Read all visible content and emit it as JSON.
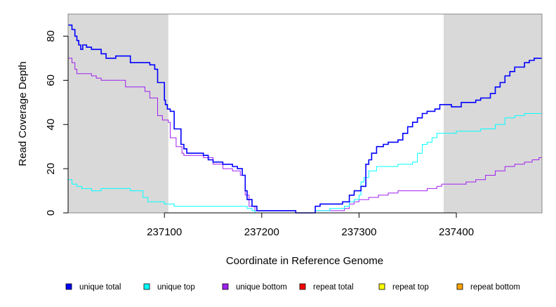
{
  "chart_data": {
    "type": "line",
    "title": "",
    "xlabel": "Coordinate in Reference Genome",
    "ylabel": "Read Coverage Depth",
    "xlim": [
      237001,
      237488
    ],
    "ylim": [
      0,
      90
    ],
    "x_ticks": [
      237100,
      237200,
      237300,
      237400
    ],
    "x_tick_labels": [
      "237100",
      "237200",
      "237300",
      "237400"
    ],
    "y_ticks": [
      0,
      20,
      40,
      60,
      80
    ],
    "y_tick_labels": [
      "0",
      "20",
      "40",
      "60",
      "80"
    ],
    "shaded_regions": [
      [
        237001,
        237104
      ],
      [
        237387,
        237488
      ]
    ],
    "shade_color": "#d9d9d9",
    "grid": false,
    "legend_position": "bottom",
    "series": [
      {
        "name": "unique total",
        "color": "#0000ff",
        "width": 1.6,
        "points": [
          [
            237001,
            85
          ],
          [
            237005,
            83
          ],
          [
            237008,
            80
          ],
          [
            237010,
            78
          ],
          [
            237012,
            76
          ],
          [
            237014,
            74
          ],
          [
            237016,
            76
          ],
          [
            237020,
            75
          ],
          [
            237025,
            74
          ],
          [
            237035,
            72
          ],
          [
            237040,
            70
          ],
          [
            237050,
            71
          ],
          [
            237065,
            68
          ],
          [
            237085,
            67
          ],
          [
            237090,
            65
          ],
          [
            237093,
            59
          ],
          [
            237100,
            51
          ],
          [
            237101,
            49
          ],
          [
            237103,
            47
          ],
          [
            237106,
            46
          ],
          [
            237110,
            38
          ],
          [
            237117,
            31
          ],
          [
            237120,
            29
          ],
          [
            237123,
            27
          ],
          [
            237140,
            26
          ],
          [
            237145,
            24
          ],
          [
            237150,
            23
          ],
          [
            237160,
            22
          ],
          [
            237170,
            21
          ],
          [
            237175,
            20
          ],
          [
            237180,
            17
          ],
          [
            237183,
            10
          ],
          [
            237185,
            6
          ],
          [
            237190,
            3
          ],
          [
            237195,
            1
          ],
          [
            237235,
            0
          ],
          [
            237255,
            3
          ],
          [
            237260,
            4
          ],
          [
            237283,
            5
          ],
          [
            237290,
            8
          ],
          [
            237295,
            10
          ],
          [
            237302,
            12
          ],
          [
            237307,
            22
          ],
          [
            237310,
            24
          ],
          [
            237313,
            27
          ],
          [
            237318,
            30
          ],
          [
            237325,
            31
          ],
          [
            237330,
            32
          ],
          [
            237340,
            33
          ],
          [
            237345,
            36
          ],
          [
            237350,
            39
          ],
          [
            237355,
            41
          ],
          [
            237360,
            43
          ],
          [
            237365,
            45
          ],
          [
            237370,
            46
          ],
          [
            237378,
            47
          ],
          [
            237383,
            49
          ],
          [
            237395,
            48
          ],
          [
            237405,
            50
          ],
          [
            237420,
            51
          ],
          [
            237425,
            52
          ],
          [
            237435,
            54
          ],
          [
            237440,
            57
          ],
          [
            237445,
            59
          ],
          [
            237450,
            62
          ],
          [
            237455,
            64
          ],
          [
            237460,
            66
          ],
          [
            237470,
            68
          ],
          [
            237475,
            69
          ],
          [
            237480,
            70
          ],
          [
            237488,
            70
          ]
        ]
      },
      {
        "name": "unique top",
        "color": "#00ffff",
        "width": 1,
        "points": [
          [
            237001,
            15
          ],
          [
            237005,
            13
          ],
          [
            237010,
            12
          ],
          [
            237015,
            11
          ],
          [
            237025,
            10
          ],
          [
            237035,
            11
          ],
          [
            237065,
            10
          ],
          [
            237078,
            7
          ],
          [
            237083,
            5
          ],
          [
            237100,
            4
          ],
          [
            237110,
            3
          ],
          [
            237185,
            2
          ],
          [
            237190,
            1
          ],
          [
            237193,
            0
          ],
          [
            237255,
            1
          ],
          [
            237270,
            2
          ],
          [
            237285,
            3
          ],
          [
            237290,
            5
          ],
          [
            237295,
            6
          ],
          [
            237300,
            8
          ],
          [
            237302,
            14
          ],
          [
            237305,
            16
          ],
          [
            237310,
            19
          ],
          [
            237318,
            21
          ],
          [
            237340,
            22
          ],
          [
            237355,
            23
          ],
          [
            237360,
            27
          ],
          [
            237365,
            31
          ],
          [
            237370,
            32
          ],
          [
            237375,
            34
          ],
          [
            237380,
            36
          ],
          [
            237400,
            37
          ],
          [
            237425,
            38
          ],
          [
            237440,
            40
          ],
          [
            237450,
            43
          ],
          [
            237460,
            44
          ],
          [
            237470,
            45
          ],
          [
            237488,
            45
          ]
        ]
      },
      {
        "name": "unique bottom",
        "color": "#a020f0",
        "width": 1,
        "points": [
          [
            237001,
            70
          ],
          [
            237005,
            68
          ],
          [
            237008,
            65
          ],
          [
            237010,
            63
          ],
          [
            237025,
            62
          ],
          [
            237030,
            61
          ],
          [
            237035,
            60
          ],
          [
            237060,
            57
          ],
          [
            237080,
            55
          ],
          [
            237085,
            52
          ],
          [
            237093,
            44
          ],
          [
            237098,
            42
          ],
          [
            237104,
            41
          ],
          [
            237106,
            34
          ],
          [
            237112,
            30
          ],
          [
            237118,
            27
          ],
          [
            237120,
            26
          ],
          [
            237140,
            25
          ],
          [
            237150,
            22
          ],
          [
            237160,
            20
          ],
          [
            237170,
            19
          ],
          [
            237178,
            17
          ],
          [
            237183,
            8
          ],
          [
            237187,
            3
          ],
          [
            237193,
            1
          ],
          [
            237235,
            0
          ],
          [
            237255,
            1
          ],
          [
            237285,
            2
          ],
          [
            237290,
            4
          ],
          [
            237295,
            5
          ],
          [
            237300,
            6
          ],
          [
            237310,
            7
          ],
          [
            237320,
            8
          ],
          [
            237330,
            9
          ],
          [
            237340,
            10
          ],
          [
            237370,
            11
          ],
          [
            237380,
            12
          ],
          [
            237385,
            13
          ],
          [
            237410,
            14
          ],
          [
            237420,
            15
          ],
          [
            237430,
            17
          ],
          [
            237440,
            19
          ],
          [
            237450,
            21
          ],
          [
            237460,
            22
          ],
          [
            237470,
            23
          ],
          [
            237478,
            24
          ],
          [
            237485,
            25
          ],
          [
            237488,
            25
          ]
        ]
      },
      {
        "name": "repeat total",
        "color": "#ff0000",
        "width": 1,
        "points": [
          [
            237001,
            0
          ],
          [
            237488,
            0
          ]
        ]
      },
      {
        "name": "repeat top",
        "color": "#ffff00",
        "width": 1,
        "points": [
          [
            237001,
            0
          ],
          [
            237488,
            0
          ]
        ]
      },
      {
        "name": "repeat bottom",
        "color": "#ffa500",
        "width": 1,
        "points": [
          [
            237001,
            0
          ],
          [
            237488,
            0
          ]
        ]
      }
    ]
  }
}
